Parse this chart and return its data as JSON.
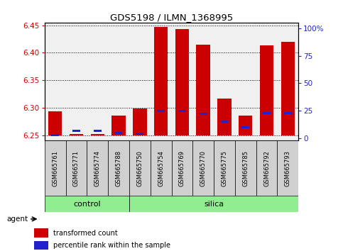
{
  "title": "GDS5198 / ILMN_1368995",
  "samples": [
    "GSM665761",
    "GSM665771",
    "GSM665774",
    "GSM665788",
    "GSM665750",
    "GSM665754",
    "GSM665769",
    "GSM665770",
    "GSM665775",
    "GSM665785",
    "GSM665792",
    "GSM665793"
  ],
  "transformed_count": [
    6.293,
    6.252,
    6.252,
    6.285,
    6.299,
    6.447,
    6.443,
    6.415,
    6.317,
    6.285,
    6.413,
    6.42
  ],
  "percentile_rank": [
    3,
    7,
    7,
    5,
    4,
    25,
    25,
    22,
    15,
    10,
    23,
    23
  ],
  "ylim_left": [
    6.24,
    6.455
  ],
  "ylim_right": [
    -2,
    105
  ],
  "yticks_left": [
    6.25,
    6.3,
    6.35,
    6.4,
    6.45
  ],
  "yticks_right": [
    0,
    25,
    50,
    75,
    100
  ],
  "ytick_labels_right": [
    "0",
    "25",
    "50",
    "75",
    "100%"
  ],
  "bar_bottom": 6.25,
  "bar_width": 0.65,
  "red_color": "#cc0000",
  "blue_color": "#2222cc",
  "grid_color": "#000000",
  "groups": [
    {
      "label": "control",
      "indices": [
        0,
        1,
        2,
        3
      ],
      "color": "#90ee90"
    },
    {
      "label": "silica",
      "indices": [
        4,
        5,
        6,
        7,
        8,
        9,
        10,
        11
      ],
      "color": "#90ee90"
    }
  ],
  "agent_label": "agent",
  "legend_items": [
    {
      "color": "#cc0000",
      "label": "transformed count"
    },
    {
      "color": "#2222cc",
      "label": "percentile rank within the sample"
    }
  ],
  "plot_bg_color": "#f0f0f0",
  "sample_box_color": "#d0d0d0",
  "tick_label_color_left": "#cc0000",
  "tick_label_color_right": "#2222cc"
}
